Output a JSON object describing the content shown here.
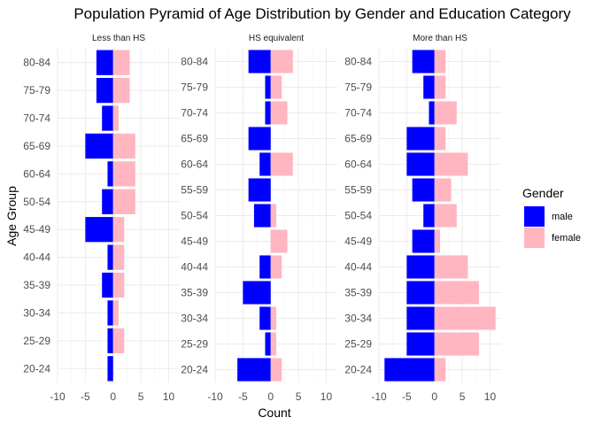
{
  "chart_data": {
    "type": "bar",
    "orientation": "horizontal",
    "title": "Population Pyramid of Age Distribution by Gender and Education Category",
    "xlabel": "Count",
    "ylabel": "Age Group",
    "xlim": [
      -10,
      12
    ],
    "x_ticks": [
      -10,
      -5,
      0,
      5,
      10
    ],
    "grid": true,
    "legend": {
      "title": "Gender",
      "position": "right",
      "entries": [
        {
          "label": "male",
          "color": "#0000FF"
        },
        {
          "label": "female",
          "color": "#FFB6C1"
        }
      ]
    },
    "panels": [
      {
        "label": "Less than HS",
        "categories": [
          "20-24",
          "25-29",
          "30-34",
          "35-39",
          "40-44",
          "45-49",
          "50-54",
          "60-64",
          "65-69",
          "70-74",
          "75-79",
          "80-84"
        ],
        "series": [
          {
            "name": "male",
            "values": [
              -1,
              -1,
              -1,
              -2,
              -1,
              -5,
              -2,
              -1,
              -5,
              -2,
              -3,
              -3
            ]
          },
          {
            "name": "female",
            "values": [
              0,
              2,
              1,
              2,
              2,
              2,
              4,
              4,
              4,
              1,
              3,
              3
            ]
          }
        ]
      },
      {
        "label": "HS equivalent",
        "categories": [
          "20-24",
          "25-29",
          "30-34",
          "35-39",
          "40-44",
          "45-49",
          "50-54",
          "55-59",
          "60-64",
          "65-69",
          "70-74",
          "75-79",
          "80-84"
        ],
        "series": [
          {
            "name": "male",
            "values": [
              -6,
              -1,
              -2,
              -5,
              -2,
              0,
              -3,
              -4,
              -2,
              -4,
              -1,
              -1,
              -4
            ]
          },
          {
            "name": "female",
            "values": [
              2,
              1,
              1,
              0,
              2,
              3,
              1,
              0,
              4,
              0,
              3,
              2,
              4
            ]
          }
        ]
      },
      {
        "label": "More than HS",
        "categories": [
          "20-24",
          "25-29",
          "30-34",
          "35-39",
          "40-44",
          "45-49",
          "50-54",
          "55-59",
          "60-64",
          "65-69",
          "70-74",
          "75-79",
          "80-84"
        ],
        "series": [
          {
            "name": "male",
            "values": [
              -9,
              -5,
              -5,
              -5,
              -5,
              -4,
              -2,
              -4,
              -5,
              -5,
              -1,
              -2,
              -4
            ]
          },
          {
            "name": "female",
            "values": [
              2,
              8,
              11,
              8,
              6,
              1,
              4,
              3,
              6,
              2,
              4,
              2,
              2
            ]
          }
        ]
      }
    ]
  }
}
